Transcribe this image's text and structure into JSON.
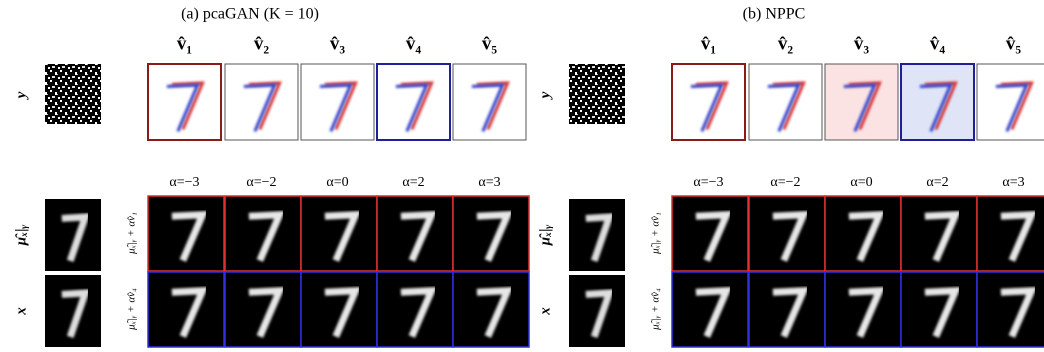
{
  "panels": [
    {
      "title": "(a) pcaGAN (K = 10)",
      "columns": [
        "v̂₁",
        "v̂₂",
        "v̂₃",
        "v̂₄",
        "v̂₅"
      ],
      "alphas": [
        "α=−3",
        "α=−2",
        "α=0",
        "α=2",
        "α=3"
      ],
      "row_labels": [
        "y",
        "μ̂ₓ|ᵧ",
        "x"
      ],
      "side_labels": [
        "μ̂ₓ|ᵧ + αv̂₁",
        "μ̂ₓ|ᵧ + αv̂₄"
      ]
    },
    {
      "title": "(b) NPPC",
      "columns": [
        "v̂₁",
        "v̂₂",
        "v̂₃",
        "v̂₄",
        "v̂₅"
      ],
      "alphas": [
        "α=−3",
        "α=−2",
        "α=0",
        "α=2",
        "α=3"
      ],
      "row_labels": [
        "y",
        "μ̂ₓ|ᵧ",
        "x"
      ],
      "side_labels": [
        "μ̂ₓ|ᵧ + αv̂₁",
        "μ̂ₓ|ᵧ + αv̂₄"
      ]
    }
  ]
}
